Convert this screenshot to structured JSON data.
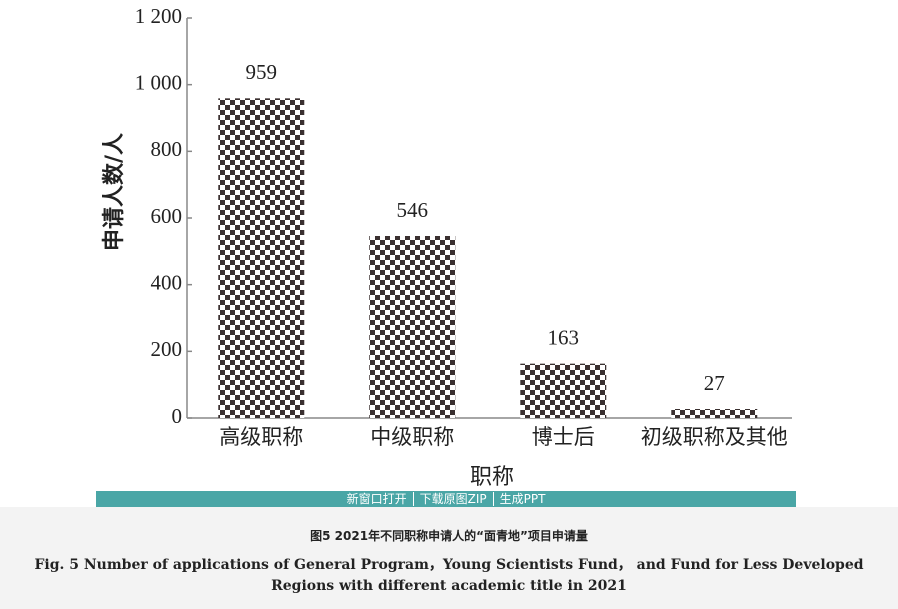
{
  "chart_data": {
    "type": "bar",
    "y_label": "申请人数/人",
    "x_label": "职称",
    "categories": [
      "高级职称",
      "中级职称",
      "博士后",
      "初级职称及其他"
    ],
    "values": [
      959,
      546,
      163,
      27
    ],
    "color": "#3a3030",
    "ylim": [
      0,
      1200
    ],
    "yticks": [
      0,
      200,
      400,
      600,
      800,
      {
        "value": 1000,
        "label": "1 000"
      },
      {
        "value": 1200,
        "label": "1 200"
      }
    ]
  },
  "toolbar": [
    "新窗口打开",
    "下载原图ZIP",
    "生成PPT"
  ],
  "caption": {
    "cn": "图5   2021年不同职称申请人的“面青地”项目申请量",
    "en": "Fig. 5   Number of applications of General Program，Young Scientists Fund， and Fund for Less Developed Regions with different academic title in 2021"
  }
}
